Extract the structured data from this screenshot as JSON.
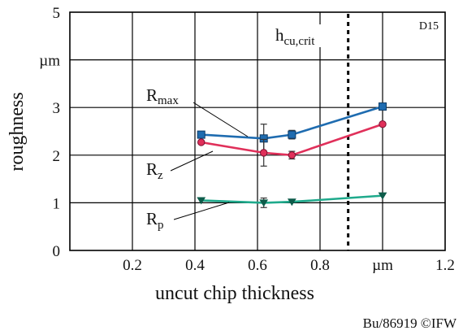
{
  "chart_data": {
    "type": "line",
    "title": "",
    "badge": "D15",
    "xlabel": "uncut chip thickness",
    "ylabel": "roughness",
    "x_unit": "µm",
    "y_unit": "µm",
    "xlim": [
      0,
      1.2
    ],
    "ylim": [
      0,
      5
    ],
    "x_ticks": [
      {
        "value": 0.2,
        "label": "0.2"
      },
      {
        "value": 0.4,
        "label": "0.4"
      },
      {
        "value": 0.6,
        "label": "0.6"
      },
      {
        "value": 0.8,
        "label": "0.8"
      },
      {
        "value": 1.0,
        "label": "µm"
      },
      {
        "value": 1.2,
        "label": "1.2"
      }
    ],
    "y_ticks": [
      {
        "value": 0,
        "label": "0"
      },
      {
        "value": 1,
        "label": "1"
      },
      {
        "value": 2,
        "label": "2"
      },
      {
        "value": 3,
        "label": "3"
      },
      {
        "value": 4,
        "label": "µm"
      },
      {
        "value": 5,
        "label": "5"
      }
    ],
    "grid": true,
    "series": [
      {
        "name": "R",
        "name_sub": "max",
        "color": "#1f6cb0",
        "marker": "square",
        "x": [
          0.42,
          0.62,
          0.71,
          1.0
        ],
        "values": [
          2.43,
          2.35,
          2.43,
          3.02
        ],
        "error": [
          0.0,
          0.3,
          0.09,
          0.0
        ]
      },
      {
        "name": "R",
        "name_sub": "z",
        "color": "#e0305a",
        "marker": "circle",
        "x": [
          0.42,
          0.62,
          0.71,
          1.0
        ],
        "values": [
          2.27,
          2.05,
          2.0,
          2.65
        ],
        "error": [
          0.0,
          0.28,
          0.08,
          0.0
        ]
      },
      {
        "name": "R",
        "name_sub": "p",
        "color": "#1faa8c",
        "marker": "triangle-down",
        "x": [
          0.42,
          0.62,
          0.71,
          1.0
        ],
        "values": [
          1.05,
          1.0,
          1.02,
          1.15
        ],
        "error": [
          0.0,
          0.1,
          0.0,
          0.0
        ]
      }
    ],
    "reference_line": {
      "x": 0.89,
      "style": "dotted",
      "label": "h",
      "label_sub": "cu,crit"
    },
    "annotations": {
      "credit": "Bu/86919 ©IFW"
    }
  }
}
